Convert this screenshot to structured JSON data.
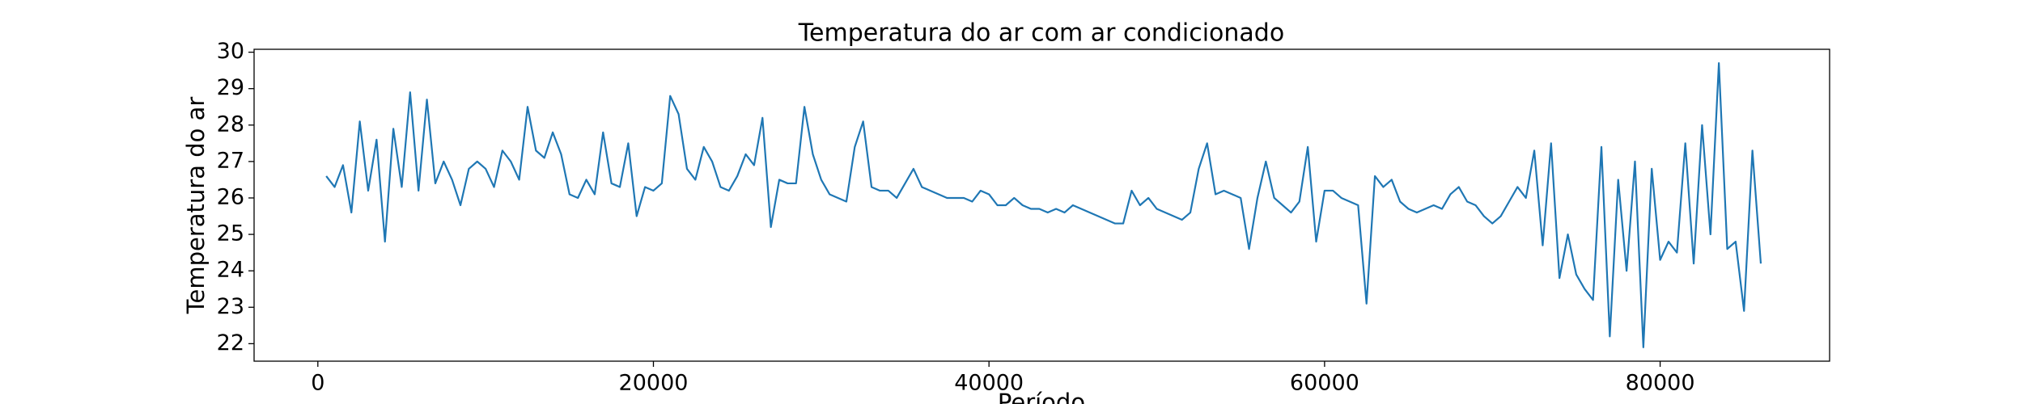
{
  "chart_data": {
    "type": "line",
    "title": "Temperatura do ar com ar condicionado",
    "xlabel": "Período",
    "ylabel": "Temperatura do ar",
    "color": "#1f77b4",
    "xlim": [
      -3800,
      90100
    ],
    "ylim": [
      21.52,
      30.08
    ],
    "xticks": [
      0,
      20000,
      40000,
      60000,
      80000
    ],
    "yticks": [
      22,
      23,
      24,
      25,
      26,
      27,
      28,
      29,
      30
    ],
    "x": [
      500,
      1000,
      1500,
      2000,
      2500,
      3000,
      3500,
      4000,
      4500,
      5000,
      5500,
      6000,
      6500,
      7000,
      7500,
      8000,
      8500,
      9000,
      9500,
      10000,
      10500,
      11000,
      11500,
      12000,
      12500,
      13000,
      13500,
      14000,
      14500,
      15000,
      15500,
      16000,
      16500,
      17000,
      17500,
      18000,
      18500,
      19000,
      19500,
      20000,
      20500,
      21000,
      21500,
      22000,
      22500,
      23000,
      23500,
      24000,
      24500,
      25000,
      25500,
      26000,
      26500,
      27000,
      27500,
      28000,
      28500,
      29000,
      29500,
      30000,
      30500,
      31000,
      31500,
      32000,
      32500,
      33000,
      33500,
      34000,
      34500,
      35000,
      35500,
      36000,
      36500,
      37000,
      37500,
      38000,
      38500,
      39000,
      39500,
      40000,
      40500,
      41000,
      41500,
      42000,
      42500,
      43000,
      43500,
      44000,
      44500,
      45000,
      45500,
      46000,
      46500,
      47000,
      47500,
      48000,
      48500,
      49000,
      49500,
      50000,
      50500,
      51000,
      51500,
      52000,
      52500,
      53000,
      53500,
      54000,
      54500,
      55000,
      55500,
      56000,
      56500,
      57000,
      57500,
      58000,
      58500,
      59000,
      59500,
      60000,
      60500,
      61000,
      61500,
      62000,
      62500,
      63000,
      63500,
      64000,
      64500,
      65000,
      65500,
      66000,
      66500,
      67000,
      67500,
      68000,
      68500,
      69000,
      69500,
      70000,
      70500,
      71000,
      71500,
      72000,
      72500,
      73000,
      73500,
      74000,
      74500,
      75000,
      75500,
      76000,
      76500,
      77000,
      77500,
      78000,
      78500,
      79000,
      79500,
      80000,
      80500,
      81000,
      81500,
      82000,
      82500,
      83000,
      83500,
      84000,
      84500,
      85000,
      85500,
      86000
    ],
    "values": [
      26.6,
      26.3,
      26.9,
      25.6,
      28.1,
      26.2,
      27.6,
      24.8,
      27.9,
      26.3,
      28.9,
      26.2,
      28.7,
      26.4,
      27.0,
      26.5,
      25.8,
      26.8,
      27.0,
      26.8,
      26.3,
      27.3,
      27.0,
      26.5,
      28.5,
      27.3,
      27.1,
      27.8,
      27.2,
      26.1,
      26.0,
      26.5,
      26.1,
      27.8,
      26.4,
      26.3,
      27.5,
      25.5,
      26.3,
      26.2,
      26.4,
      28.8,
      28.3,
      26.8,
      26.5,
      27.4,
      27.0,
      26.3,
      26.2,
      26.6,
      27.2,
      26.9,
      28.2,
      25.2,
      26.5,
      26.4,
      26.4,
      28.5,
      27.2,
      26.5,
      26.1,
      26.0,
      25.9,
      27.4,
      28.1,
      26.3,
      26.2,
      26.2,
      26.0,
      26.4,
      26.8,
      26.3,
      26.2,
      26.1,
      26.0,
      26.0,
      26.0,
      25.9,
      26.2,
      26.1,
      25.8,
      25.8,
      26.0,
      25.8,
      25.7,
      25.7,
      25.6,
      25.7,
      25.6,
      25.8,
      25.7,
      25.6,
      25.5,
      25.4,
      25.3,
      25.3,
      26.2,
      25.8,
      26.0,
      25.7,
      25.6,
      25.5,
      25.4,
      25.6,
      26.8,
      27.5,
      26.1,
      26.2,
      26.1,
      26.0,
      24.6,
      26.0,
      27.0,
      26.0,
      25.8,
      25.6,
      25.9,
      27.4,
      24.8,
      26.2,
      26.2,
      26.0,
      25.9,
      25.8,
      23.1,
      26.6,
      26.3,
      26.5,
      25.9,
      25.7,
      25.6,
      25.7,
      25.8,
      25.7,
      26.1,
      26.3,
      25.9,
      25.8,
      25.5,
      25.3,
      25.5,
      25.9,
      26.3,
      26.0,
      27.3,
      24.7,
      27.5,
      23.8,
      25.0,
      23.9,
      23.5,
      23.2,
      27.4,
      22.2,
      26.5,
      24.0,
      27.0,
      21.9,
      26.8,
      24.3,
      24.8,
      24.5,
      27.5,
      24.2,
      28.0,
      25.0,
      29.7,
      24.6,
      24.8,
      22.9,
      27.3,
      24.2
    ]
  }
}
